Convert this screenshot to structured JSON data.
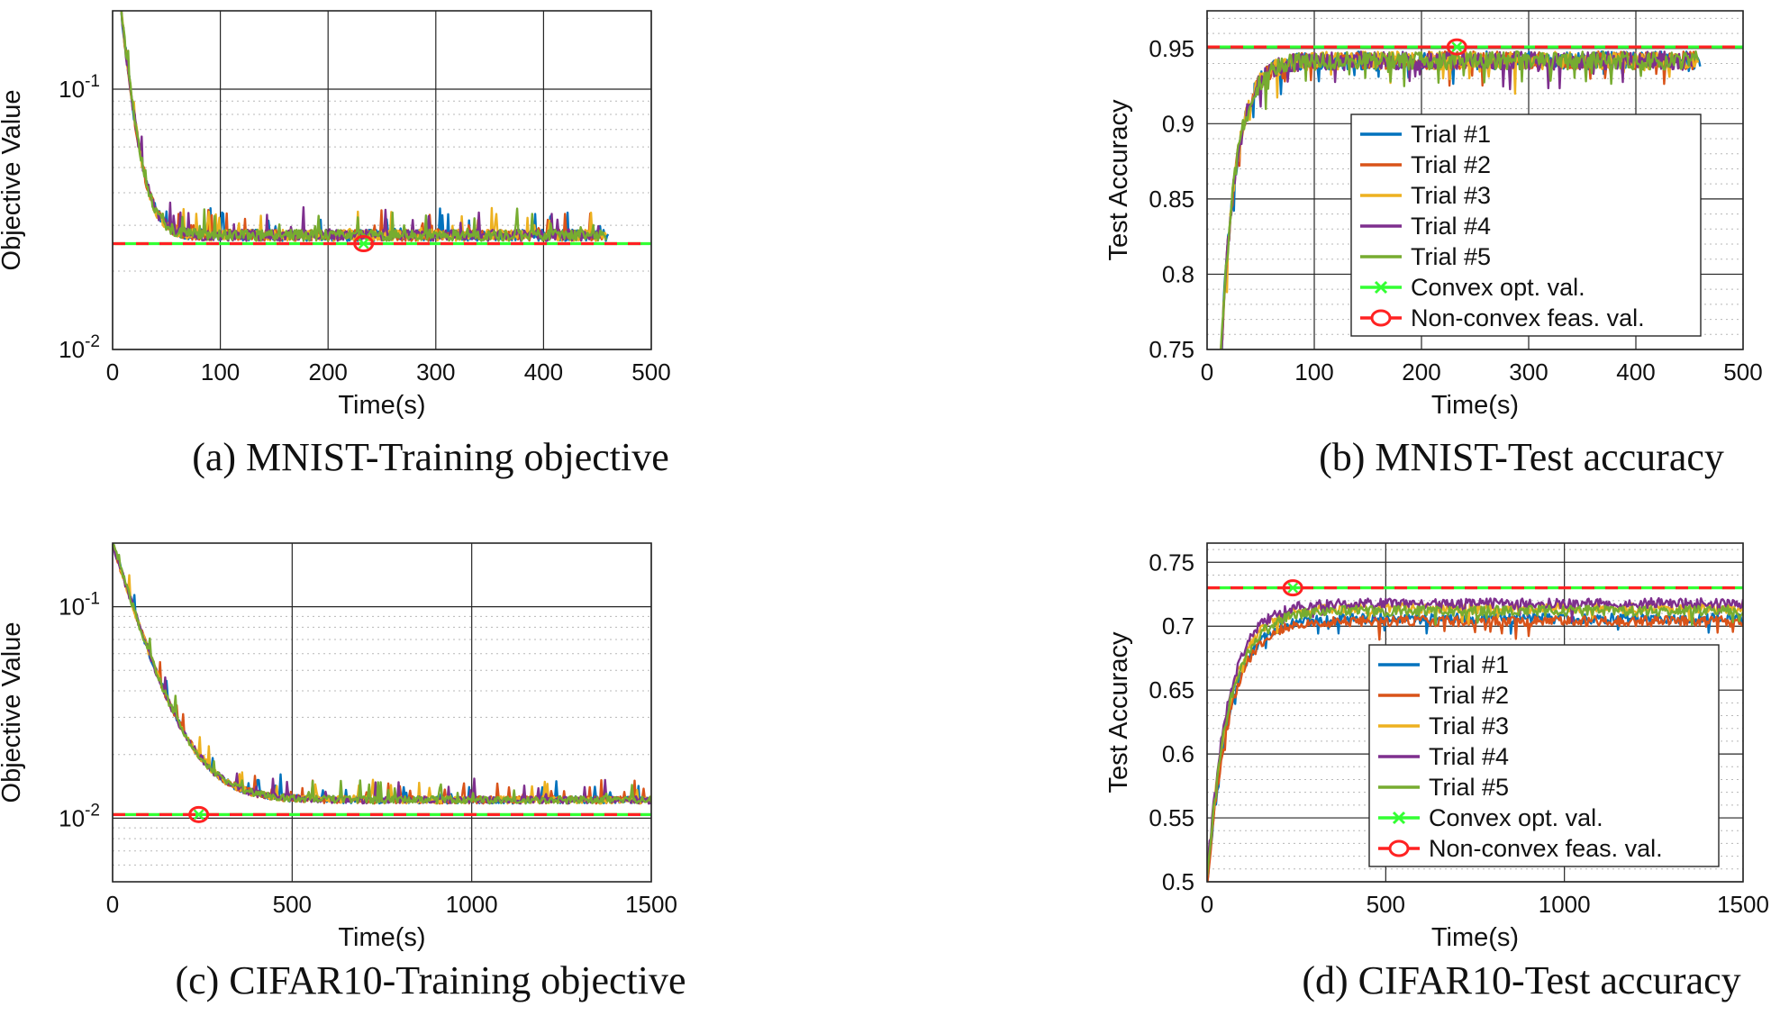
{
  "figure": {
    "colors": {
      "trial1": "#0072BD",
      "trial2": "#D95319",
      "trial3": "#EDB120",
      "trial4": "#7E2F8E",
      "trial5": "#77AC30",
      "convex": "#33ff33",
      "nonconvex": "#ff2222"
    }
  },
  "chart_data": [
    {
      "id": "a",
      "type": "line",
      "caption": "(a) MNIST-Training objective",
      "xlabel": "Time(s)",
      "ylabel": "Objective Value",
      "yscale": "log",
      "xlim": [
        0,
        500
      ],
      "ylim": [
        0.01,
        0.2
      ],
      "xticks": [
        0,
        100,
        200,
        300,
        400,
        500
      ],
      "yticks": [
        {
          "value": 0.01,
          "base": "10",
          "exp": "-2"
        },
        {
          "value": 0.1,
          "base": "10",
          "exp": "-1"
        }
      ],
      "grid": true,
      "legend": null,
      "curve": {
        "start": 0.2,
        "end": 0.0275,
        "tau": 10,
        "t_end": 458,
        "noise": 0.05,
        "spike_up": true,
        "ramp_start": 8
      },
      "convex_opt_val": 0.0255,
      "nonconvex_marker": {
        "x": 233,
        "y": 0.0255
      },
      "series": [
        {
          "name": "Trial #1",
          "end": 460
        },
        {
          "name": "Trial #2",
          "end": 455
        },
        {
          "name": "Trial #3",
          "end": 458
        },
        {
          "name": "Trial #4",
          "end": 452
        },
        {
          "name": "Trial #5",
          "end": 458
        }
      ]
    },
    {
      "id": "b",
      "type": "line",
      "caption": "(b) MNIST-Test accuracy",
      "xlabel": "Time(s)",
      "ylabel": "Test Accuracy",
      "yscale": "linear",
      "xlim": [
        0,
        500
      ],
      "ylim": [
        0.75,
        0.975
      ],
      "xticks": [
        0,
        100,
        200,
        300,
        400,
        500
      ],
      "yticks": [
        {
          "value": 0.75,
          "label": "0.75"
        },
        {
          "value": 0.8,
          "label": "0.8"
        },
        {
          "value": 0.85,
          "label": "0.85"
        },
        {
          "value": 0.9,
          "label": "0.9"
        },
        {
          "value": 0.95,
          "label": "0.95"
        }
      ],
      "grid": true,
      "legend": "center-right",
      "curve": {
        "start": 0.7,
        "end": 0.942,
        "tau": 14,
        "t_end": 458,
        "noise": 0.006,
        "spike_up": false,
        "ramp_start": 10
      },
      "convex_opt_val": 0.951,
      "nonconvex_marker": {
        "x": 233,
        "y": 0.951
      },
      "series": [
        {
          "name": "Trial #1",
          "end": 460
        },
        {
          "name": "Trial #2",
          "end": 455
        },
        {
          "name": "Trial #3",
          "end": 458
        },
        {
          "name": "Trial #4",
          "end": 452
        },
        {
          "name": "Trial #5",
          "end": 458
        }
      ]
    },
    {
      "id": "c",
      "type": "line",
      "caption": "(c) CIFAR10-Training objective",
      "xlabel": "Time(s)",
      "ylabel": "Objective Value",
      "yscale": "log",
      "xlim": [
        0,
        1500
      ],
      "ylim": [
        0.005,
        0.2
      ],
      "xticks": [
        0,
        500,
        1000,
        1500
      ],
      "yticks": [
        {
          "value": 0.01,
          "base": "10",
          "exp": "-2"
        },
        {
          "value": 0.1,
          "base": "10",
          "exp": "-1"
        }
      ],
      "grid": true,
      "legend": null,
      "curve": {
        "start": 0.2,
        "end": 0.0122,
        "tau": 75,
        "t_end": 1500,
        "noise": 0.04,
        "spike_up": true,
        "ramp_start": 0
      },
      "convex_opt_val": 0.0104,
      "nonconvex_marker": {
        "x": 240,
        "y": 0.0104
      },
      "series": [
        {
          "name": "Trial #1",
          "end": 1500
        },
        {
          "name": "Trial #2",
          "end": 1500
        },
        {
          "name": "Trial #3",
          "end": 1500
        },
        {
          "name": "Trial #4",
          "end": 1500
        },
        {
          "name": "Trial #5",
          "end": 1500
        }
      ]
    },
    {
      "id": "d",
      "type": "line",
      "caption": "(d) CIFAR10-Test accuracy",
      "xlabel": "Time(s)",
      "ylabel": "Test Accuracy",
      "yscale": "linear",
      "xlim": [
        0,
        1500
      ],
      "ylim": [
        0.5,
        0.765
      ],
      "xticks": [
        0,
        500,
        1000,
        1500
      ],
      "yticks": [
        {
          "value": 0.5,
          "label": "0.5"
        },
        {
          "value": 0.55,
          "label": "0.55"
        },
        {
          "value": 0.6,
          "label": "0.6"
        },
        {
          "value": 0.65,
          "label": "0.65"
        },
        {
          "value": 0.7,
          "label": "0.7"
        },
        {
          "value": 0.75,
          "label": "0.75"
        }
      ],
      "grid": true,
      "legend": "center-right",
      "curve": {
        "start": 0.5,
        "end": 0.71,
        "tau": 60,
        "t_end": 1500,
        "noise": 0.004,
        "spike_up": false,
        "ramp_start": 0
      },
      "convex_opt_val": 0.73,
      "nonconvex_marker": {
        "x": 240,
        "y": 0.73
      },
      "series": [
        {
          "name": "Trial #1",
          "end": 1500,
          "offset": -0.004
        },
        {
          "name": "Trial #2",
          "end": 1500,
          "offset": -0.006
        },
        {
          "name": "Trial #3",
          "end": 1500,
          "offset": 0.004
        },
        {
          "name": "Trial #4",
          "end": 1500,
          "offset": 0.008
        },
        {
          "name": "Trial #5",
          "end": 1500,
          "offset": 0.002
        }
      ]
    }
  ],
  "legend_labels": {
    "convex": "Convex opt. val.",
    "nonconvex": "Non-convex feas. val."
  }
}
